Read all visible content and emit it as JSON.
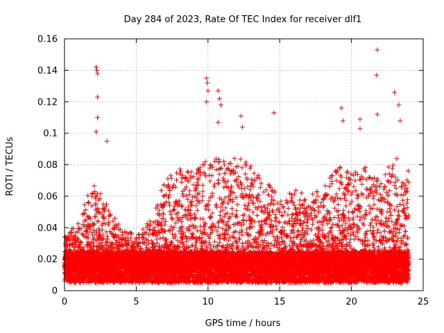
{
  "chart_data": {
    "type": "scatter",
    "title": "Day 284 of 2023, Rate Of TEC Index for receiver dlf1",
    "xlabel": "GPS time / hours",
    "ylabel": "ROTI / TECUs",
    "xlim": [
      0,
      25
    ],
    "ylim": [
      0,
      0.16
    ],
    "xticks": [
      0,
      5,
      10,
      15,
      20,
      25
    ],
    "xtick_labels": [
      "0",
      "5",
      "10",
      "15",
      "20",
      "25"
    ],
    "yticks": [
      0,
      0.02,
      0.04,
      0.06,
      0.08,
      0.1,
      0.12,
      0.14,
      0.16
    ],
    "ytick_labels": [
      "0",
      "0.02",
      "0.04",
      "0.06",
      "0.08",
      "0.1",
      "0.12",
      "0.14",
      "0.16"
    ],
    "grid": true,
    "marker": "plus",
    "color": "#ff0000",
    "series": [
      {
        "name": "",
        "summary": {
          "x_range_hours": [
            0.0,
            24.0
          ],
          "baseline_band": [
            0.005,
            0.025
          ],
          "max_value": 0.153,
          "max_at_hour": 21.8
        },
        "highlights": [
          {
            "x": 2.2,
            "y": 0.142
          },
          {
            "x": 2.25,
            "y": 0.14
          },
          {
            "x": 2.3,
            "y": 0.138
          },
          {
            "x": 2.3,
            "y": 0.123
          },
          {
            "x": 2.3,
            "y": 0.11
          },
          {
            "x": 2.2,
            "y": 0.101
          },
          {
            "x": 2.95,
            "y": 0.095
          },
          {
            "x": 9.9,
            "y": 0.135
          },
          {
            "x": 9.95,
            "y": 0.132
          },
          {
            "x": 10.0,
            "y": 0.127
          },
          {
            "x": 9.9,
            "y": 0.12
          },
          {
            "x": 10.7,
            "y": 0.127
          },
          {
            "x": 10.8,
            "y": 0.122
          },
          {
            "x": 10.9,
            "y": 0.118
          },
          {
            "x": 10.7,
            "y": 0.107
          },
          {
            "x": 12.3,
            "y": 0.111
          },
          {
            "x": 12.4,
            "y": 0.104
          },
          {
            "x": 14.6,
            "y": 0.113
          },
          {
            "x": 19.3,
            "y": 0.116
          },
          {
            "x": 19.4,
            "y": 0.108
          },
          {
            "x": 20.6,
            "y": 0.109
          },
          {
            "x": 20.6,
            "y": 0.103
          },
          {
            "x": 21.8,
            "y": 0.153
          },
          {
            "x": 21.75,
            "y": 0.137
          },
          {
            "x": 21.8,
            "y": 0.112
          },
          {
            "x": 23.0,
            "y": 0.126
          },
          {
            "x": 23.3,
            "y": 0.118
          },
          {
            "x": 23.4,
            "y": 0.108
          }
        ],
        "activity_profile": [
          {
            "hour": 0,
            "level": 0.034
          },
          {
            "hour": 1,
            "level": 0.045
          },
          {
            "hour": 2,
            "level": 0.07
          },
          {
            "hour": 3,
            "level": 0.055
          },
          {
            "hour": 4,
            "level": 0.04
          },
          {
            "hour": 5,
            "level": 0.035
          },
          {
            "hour": 6,
            "level": 0.045
          },
          {
            "hour": 7,
            "level": 0.07
          },
          {
            "hour": 8,
            "level": 0.08
          },
          {
            "hour": 9,
            "level": 0.075
          },
          {
            "hour": 10,
            "level": 0.085
          },
          {
            "hour": 11,
            "level": 0.085
          },
          {
            "hour": 12,
            "level": 0.085
          },
          {
            "hour": 13,
            "level": 0.08
          },
          {
            "hour": 14,
            "level": 0.07
          },
          {
            "hour": 15,
            "level": 0.06
          },
          {
            "hour": 16,
            "level": 0.065
          },
          {
            "hour": 17,
            "level": 0.06
          },
          {
            "hour": 18,
            "level": 0.065
          },
          {
            "hour": 19,
            "level": 0.08
          },
          {
            "hour": 20,
            "level": 0.075
          },
          {
            "hour": 21,
            "level": 0.08
          },
          {
            "hour": 22,
            "level": 0.07
          },
          {
            "hour": 23,
            "level": 0.085
          },
          {
            "hour": 24,
            "level": 0.08
          }
        ]
      }
    ]
  }
}
